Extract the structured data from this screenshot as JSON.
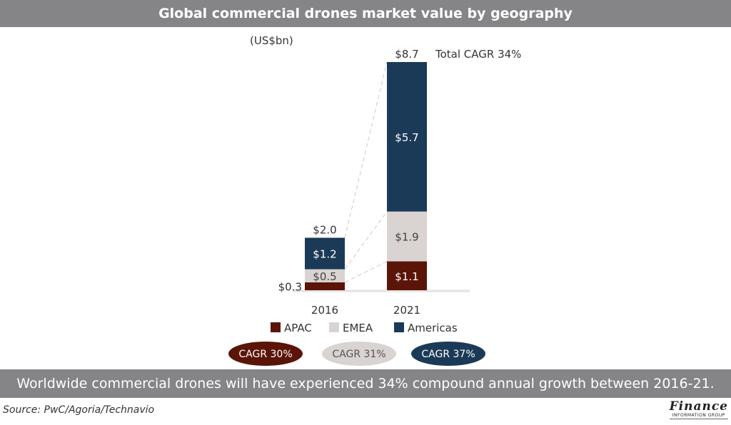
{
  "title": "Global commercial drones market value by geography",
  "colors": {
    "apac": "#5b1408",
    "emea": "#d9d3d1",
    "americas": "#1b3a57"
  },
  "chart_data": {
    "type": "bar",
    "stacked": true,
    "unit_label": "(US$bn)",
    "categories": [
      "2016",
      "2021"
    ],
    "series": [
      {
        "name": "APAC",
        "values": [
          0.3,
          1.1
        ],
        "labels": [
          "$0.3",
          "$1.1"
        ],
        "cagr": "CAGR 30%"
      },
      {
        "name": "EMEA",
        "values": [
          0.5,
          1.9
        ],
        "labels": [
          "$0.5",
          "$1.9"
        ],
        "cagr": "CAGR 31%"
      },
      {
        "name": "Americas",
        "values": [
          1.2,
          5.7
        ],
        "labels": [
          "$1.2",
          "$5.7"
        ],
        "cagr": "CAGR 37%"
      }
    ],
    "totals": [
      2.0,
      8.7
    ],
    "total_labels": [
      "$2.0",
      "$8.7"
    ],
    "total_cagr": "Total CAGR 34%",
    "ylim": [
      0,
      8.7
    ]
  },
  "footer": "Worldwide commercial drones will have experienced 34% compound annual growth between 2016-21.",
  "source": "Source: PwC/Agoria/Technavio",
  "logo": {
    "word": "Finance",
    "sub": "INFORMATION GROUP"
  }
}
